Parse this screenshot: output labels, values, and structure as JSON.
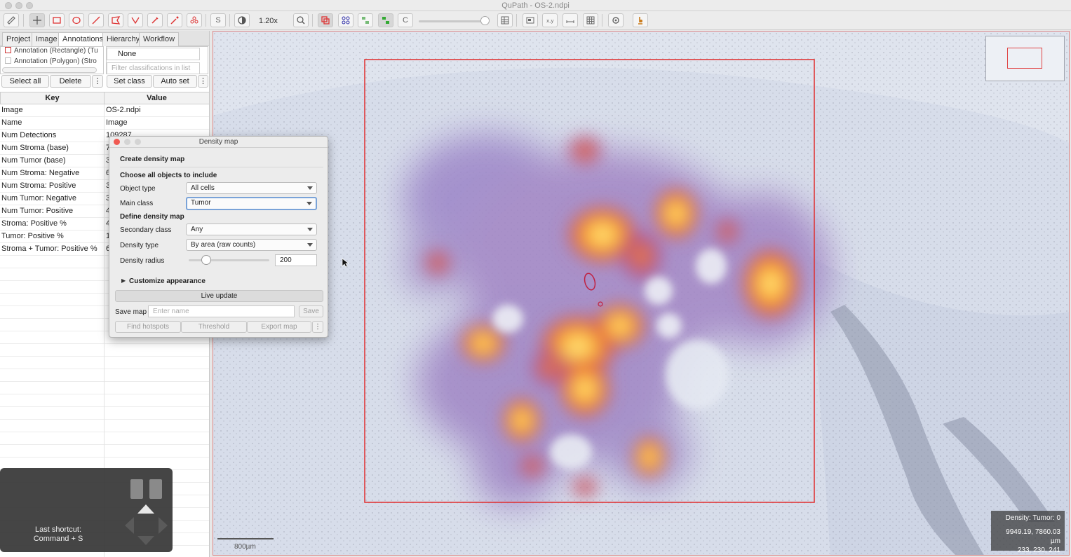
{
  "window": {
    "title": "QuPath - OS-2.ndpi"
  },
  "toolbar": {
    "zoom": "1.20x",
    "tool_icons": [
      "move-icon",
      "rectangle-icon",
      "ellipse-icon",
      "line-icon",
      "polygon-icon",
      "polyline-icon",
      "brush-icon",
      "wand-icon",
      "points-icon"
    ],
    "selection_mode_label": "S",
    "c_label": "C"
  },
  "tabs": [
    "Project",
    "Image",
    "Annotations",
    "Hierarchy",
    "Workflow"
  ],
  "annotations": {
    "items": [
      "Annotation (Rectangle) (Tu",
      "Annotation (Polygon) (Stro"
    ],
    "classification_selected": "None",
    "classification_filter_placeholder": "Filter classifications in list",
    "select_all": "Select all",
    "delete": "Delete",
    "set_class": "Set class",
    "auto_set": "Auto set",
    "more": "⋮"
  },
  "measurements": {
    "key_header": "Key",
    "value_header": "Value",
    "rows": [
      {
        "key": "Image",
        "value": "OS-2.ndpi"
      },
      {
        "key": "Name",
        "value": "Image"
      },
      {
        "key": "Num Detections",
        "value": "109287"
      },
      {
        "key": "Num Stroma (base)",
        "value": "7"
      },
      {
        "key": "Num Tumor (base)",
        "value": "3"
      },
      {
        "key": "Num Stroma: Negative",
        "value": "6"
      },
      {
        "key": "Num Stroma: Positive",
        "value": "3"
      },
      {
        "key": "Num Tumor: Negative",
        "value": "3"
      },
      {
        "key": "Num Tumor: Positive",
        "value": "4"
      },
      {
        "key": "Stroma: Positive %",
        "value": "4"
      },
      {
        "key": "Tumor: Positive %",
        "value": "1"
      },
      {
        "key": "Stroma + Tumor: Positive %",
        "value": "6"
      }
    ]
  },
  "dialog": {
    "title": "Density map",
    "create_heading": "Create density map",
    "choose_heading": "Choose all objects to include",
    "object_type_label": "Object type",
    "object_type_value": "All cells",
    "main_class_label": "Main class",
    "main_class_value": "Tumor",
    "define_heading": "Define density map",
    "secondary_class_label": "Secondary class",
    "secondary_class_value": "Any",
    "density_type_label": "Density type",
    "density_type_value": "By area (raw counts)",
    "density_radius_label": "Density radius",
    "density_radius_value": "200",
    "density_radius_fraction": 0.2,
    "customize_label": "Customize appearance",
    "live_update": "Live update",
    "save_map_label": "Save map",
    "name_placeholder": "Enter name",
    "save": "Save",
    "find_hotspots": "Find hotspots",
    "threshold": "Threshold",
    "export_map": "Export map",
    "more": "⋮"
  },
  "shortcut": {
    "line1": "Last shortcut:",
    "line2": "Command + S"
  },
  "viewer": {
    "info_line1": "Density: Tumor: 0",
    "info_line2": "9949.19, 7860.03 µm",
    "info_line3": "233, 230, 241",
    "scale_label": "800µm"
  },
  "colors": {
    "annotation_red": "#e02c2c",
    "heat_hot": "#ffd64a",
    "heat_mid": "#f5a23a",
    "heat_low": "#8b6ac7"
  }
}
